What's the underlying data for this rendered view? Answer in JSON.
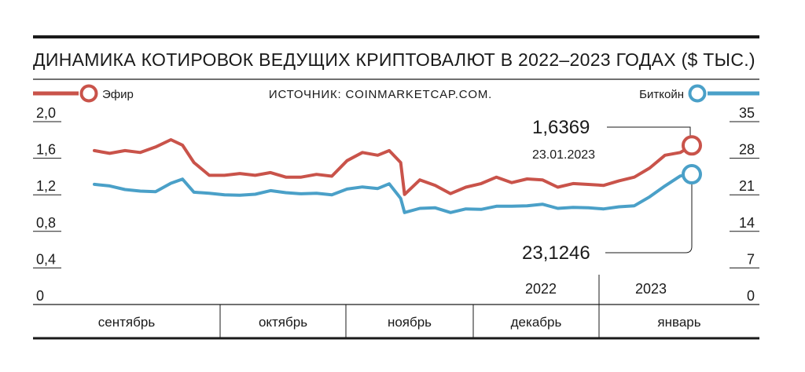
{
  "chart_data": {
    "type": "line",
    "title": "ДИНАМИКА КОТИРОВОК ВЕДУЩИХ КРИПТОВАЛЮТ В 2022–2023 ГОДАХ ($ ТЫС.)",
    "source": "ИСТОЧНИК: COINMARKETCAP.COM.",
    "x_start": "2022-08-20",
    "x_end": "2023-01-23",
    "months": [
      "сентябрь",
      "октябрь",
      "ноябрь",
      "декабрь",
      "январь"
    ],
    "years": [
      "2022",
      "2023"
    ],
    "left_axis": {
      "ticks": [
        "2,0",
        "1,6",
        "1,2",
        "0,8",
        "0,4",
        "0"
      ],
      "ylim": [
        0,
        2.0
      ]
    },
    "right_axis": {
      "ticks": [
        "35",
        "28",
        "21",
        "14",
        "7",
        "0"
      ],
      "ylim": [
        0,
        35
      ]
    },
    "colors": {
      "eth": "#c9534a",
      "btc": "#4aa0c8",
      "axis": "#1a1a1a"
    },
    "series": [
      {
        "name": "Эфир",
        "axis": "left",
        "x": [
          "2022-08-20",
          "2022-08-24",
          "2022-08-28",
          "2022-09-01",
          "2022-09-05",
          "2022-09-09",
          "2022-09-12",
          "2022-09-15",
          "2022-09-19",
          "2022-09-23",
          "2022-09-27",
          "2022-10-01",
          "2022-10-05",
          "2022-10-09",
          "2022-10-13",
          "2022-10-17",
          "2022-10-21",
          "2022-10-25",
          "2022-10-29",
          "2022-11-02",
          "2022-11-05",
          "2022-11-08",
          "2022-11-09",
          "2022-11-13",
          "2022-11-17",
          "2022-11-21",
          "2022-11-25",
          "2022-11-29",
          "2022-12-03",
          "2022-12-07",
          "2022-12-11",
          "2022-12-15",
          "2022-12-19",
          "2022-12-23",
          "2022-12-27",
          "2022-12-31",
          "2023-01-04",
          "2023-01-08",
          "2023-01-12",
          "2023-01-16",
          "2023-01-20",
          "2023-01-23"
        ],
        "values": [
          1.58,
          1.55,
          1.58,
          1.56,
          1.62,
          1.7,
          1.64,
          1.45,
          1.31,
          1.31,
          1.33,
          1.31,
          1.34,
          1.29,
          1.29,
          1.32,
          1.3,
          1.47,
          1.56,
          1.53,
          1.58,
          1.45,
          1.1,
          1.26,
          1.2,
          1.11,
          1.18,
          1.22,
          1.29,
          1.23,
          1.27,
          1.26,
          1.18,
          1.22,
          1.21,
          1.2,
          1.25,
          1.29,
          1.39,
          1.53,
          1.56,
          1.6369
        ]
      },
      {
        "name": "Биткойн",
        "axis": "right",
        "x": [
          "2022-08-20",
          "2022-08-24",
          "2022-08-28",
          "2022-09-01",
          "2022-09-05",
          "2022-09-09",
          "2022-09-12",
          "2022-09-15",
          "2022-09-19",
          "2022-09-23",
          "2022-09-27",
          "2022-10-01",
          "2022-10-05",
          "2022-10-09",
          "2022-10-13",
          "2022-10-17",
          "2022-10-21",
          "2022-10-25",
          "2022-10-29",
          "2022-11-02",
          "2022-11-05",
          "2022-11-08",
          "2022-11-09",
          "2022-11-13",
          "2022-11-17",
          "2022-11-21",
          "2022-11-25",
          "2022-11-29",
          "2022-12-03",
          "2022-12-07",
          "2022-12-11",
          "2022-12-15",
          "2022-12-19",
          "2022-12-23",
          "2022-12-27",
          "2022-12-31",
          "2023-01-04",
          "2023-01-08",
          "2023-01-12",
          "2023-01-16",
          "2023-01-20",
          "2023-01-23"
        ],
        "values": [
          21.2,
          20.9,
          20.2,
          19.9,
          19.8,
          21.4,
          22.2,
          19.7,
          19.5,
          19.2,
          19.1,
          19.3,
          20.0,
          19.6,
          19.4,
          19.5,
          19.2,
          20.3,
          20.7,
          20.4,
          21.3,
          18.5,
          15.8,
          16.6,
          16.7,
          15.8,
          16.5,
          16.4,
          17.0,
          17.0,
          17.1,
          17.4,
          16.6,
          16.8,
          16.7,
          16.5,
          16.9,
          17.1,
          18.8,
          20.9,
          22.8,
          23.1246
        ]
      }
    ],
    "callouts": {
      "eth_value": "1,6369",
      "eth_date": "23.01.2023",
      "btc_value": "23,1246"
    }
  }
}
